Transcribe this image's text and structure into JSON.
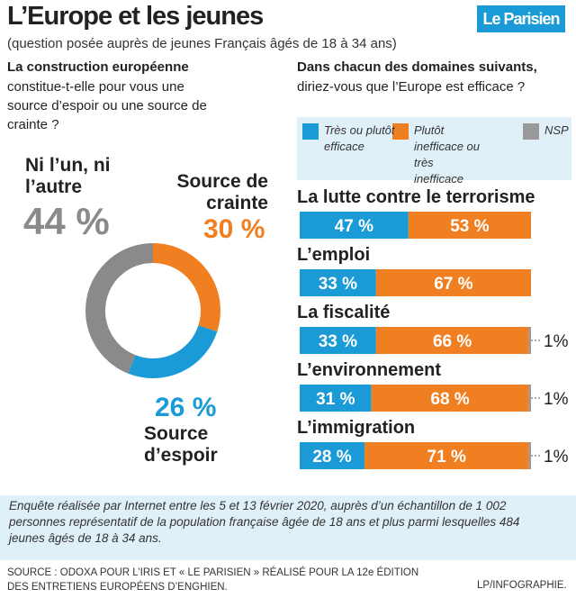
{
  "header": {
    "title": "L’Europe et les jeunes",
    "subtitle": "(question posée auprès de jeunes Français âgés de 18 à 34 ans)",
    "logo": "Le Parisien"
  },
  "chart_data": [
    {
      "type": "pie",
      "donut": true,
      "title": "La construction européenne",
      "subtitle": "constitue-t-elle pour vous une source d’espoir ou une source de crainte ?",
      "categories": [
        "Ni l’un, ni l’autre",
        "Source de crainte",
        "Source d’espoir"
      ],
      "values": [
        44,
        30,
        26
      ],
      "value_labels": [
        "44 %",
        "30 %",
        "26 %"
      ],
      "colors": [
        "#8a8a8a",
        "#f07f22",
        "#1a9ad6"
      ]
    },
    {
      "type": "bar",
      "orientation": "horizontal",
      "stacked": true,
      "title": "Dans chacun des domaines suivants,",
      "subtitle": "diriez-vous que l’Europe est efficace ?",
      "categories": [
        "La lutte contre le terrorisme",
        "L’emploi",
        "La fiscalité",
        "L’environnement",
        "L’immigration"
      ],
      "xlim": [
        0,
        100
      ],
      "series": [
        {
          "name": "Très ou plutôt efficace",
          "color": "#1a9ad6",
          "values": [
            47,
            33,
            33,
            31,
            28
          ],
          "value_labels": [
            "47 %",
            "33 %",
            "33 %",
            "31 %",
            "28 %"
          ]
        },
        {
          "name": "Plutôt inefficace ou très inefficace",
          "color": "#f07f22",
          "values": [
            53,
            67,
            66,
            68,
            71
          ],
          "value_labels": [
            "53 %",
            "67 %",
            "66 %",
            "68 %",
            "71 %"
          ]
        },
        {
          "name": "NSP",
          "color": "#999999",
          "values": [
            null,
            null,
            1,
            1,
            1
          ],
          "value_labels": [
            null,
            null,
            "1%",
            "1%",
            "1%"
          ]
        }
      ]
    }
  ],
  "footer": {
    "note": "Enquête réalisée par Internet entre les 5 et 13 février 2020, auprès d’un échantillon de 1 002 personnes représentatif de la population française âgée de 18 ans et plus parmi lesquelles 484 jeunes âgés de 18 à 34 ans.",
    "source": "SOURCE : ODOXA POUR L’IRIS ET « LE PARISIEN » RÉALISÉ POUR LA 12e ÉDITION DES ENTRETIENS EUROPÉENS D’ENGHIEN.",
    "credit": "LP/INFOGRAPHIE."
  }
}
